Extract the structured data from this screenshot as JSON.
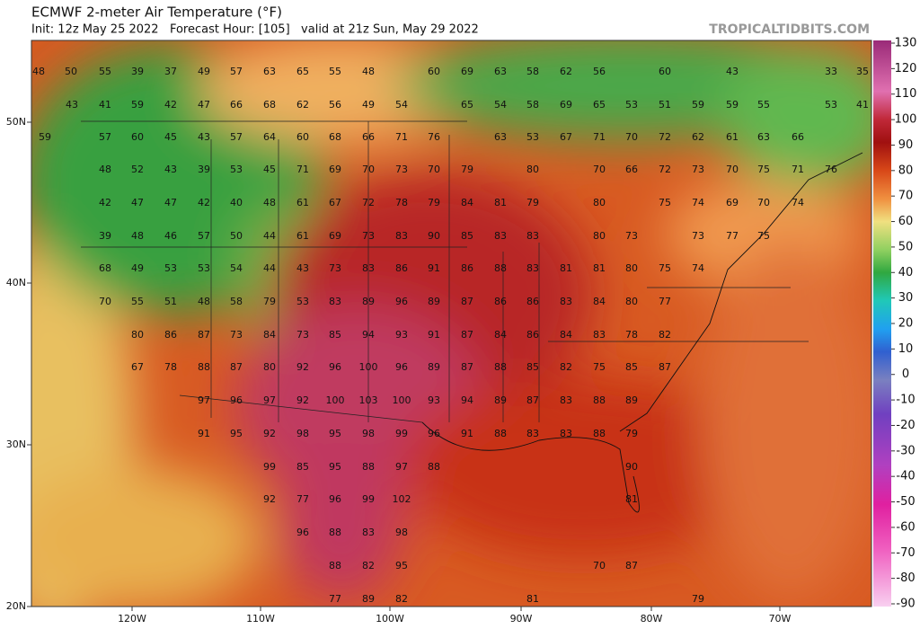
{
  "header": {
    "title": "ECMWF 2-meter Air Temperature (°F)",
    "subtitle": "Init: 12z May 25 2022   Forecast Hour: [105]   valid at 21z Sun, May 29 2022",
    "brand": "TROPICALTIDBITS.COM"
  },
  "colorbar": {
    "ticks": [
      130,
      120,
      110,
      100,
      90,
      80,
      70,
      60,
      50,
      40,
      30,
      20,
      10,
      0,
      -10,
      -20,
      -30,
      -40,
      -50,
      -60,
      -70,
      -80,
      -90
    ]
  },
  "latitudes": [
    "50N",
    "40N",
    "30N",
    "20N"
  ],
  "longitudes": [
    "120W",
    "110W",
    "100W",
    "90W",
    "80W",
    "70W"
  ],
  "station_temps": [
    [
      48,
      50,
      55,
      39,
      37,
      49,
      57,
      63,
      65,
      55,
      48,
      60,
      69,
      63,
      58,
      62,
      56,
      60,
      43,
      33,
      35
    ],
    [
      43,
      41,
      59,
      42,
      47,
      66,
      68,
      62,
      56,
      49,
      54,
      65,
      54,
      58,
      69,
      65,
      53,
      51,
      59,
      59,
      55,
      53,
      41
    ],
    [
      59,
      57,
      60,
      45,
      43,
      57,
      64,
      60,
      68,
      66,
      71,
      76,
      63,
      53,
      67,
      71,
      70,
      72,
      62,
      61,
      63,
      66
    ],
    [
      48,
      52,
      43,
      39,
      53,
      45,
      71,
      69,
      70,
      73,
      70,
      79,
      80,
      70,
      66,
      72,
      73,
      70,
      75,
      71,
      76
    ],
    [
      42,
      47,
      47,
      42,
      40,
      48,
      61,
      67,
      72,
      78,
      79,
      84,
      81,
      79,
      80,
      75,
      74,
      69,
      70,
      74
    ],
    [
      39,
      48,
      46,
      57,
      50,
      44,
      61,
      69,
      73,
      83,
      90,
      85,
      83,
      83,
      80,
      73,
      73,
      77,
      75
    ],
    [
      68,
      49,
      53,
      53,
      54,
      44,
      43,
      73,
      83,
      86,
      91,
      86,
      88,
      83,
      81,
      81,
      80,
      75,
      74
    ],
    [
      70,
      55,
      51,
      48,
      58,
      79,
      53,
      83,
      89,
      96,
      89,
      87,
      86,
      86,
      83,
      84,
      80,
      77
    ],
    [
      80,
      86,
      87,
      73,
      84,
      73,
      85,
      94,
      93,
      91,
      87,
      84,
      86,
      84,
      83,
      78,
      82
    ],
    [
      67,
      78,
      88,
      87,
      80,
      92,
      96,
      100,
      96,
      89,
      87,
      88,
      85,
      82,
      75,
      85,
      87
    ],
    [
      97,
      96,
      97,
      92,
      100,
      103,
      100,
      93,
      94,
      89,
      87,
      83,
      88,
      89
    ],
    [
      91,
      95,
      92,
      98,
      95,
      98,
      99,
      96,
      91,
      88,
      83,
      83,
      88,
      79
    ],
    [
      99,
      85,
      95,
      88,
      97,
      88,
      90
    ],
    [
      92,
      77,
      96,
      99,
      102,
      81
    ],
    [
      96,
      88,
      83,
      98
    ],
    [
      88,
      82,
      95,
      70,
      87
    ],
    [
      77,
      89,
      82,
      81,
      79
    ]
  ]
}
